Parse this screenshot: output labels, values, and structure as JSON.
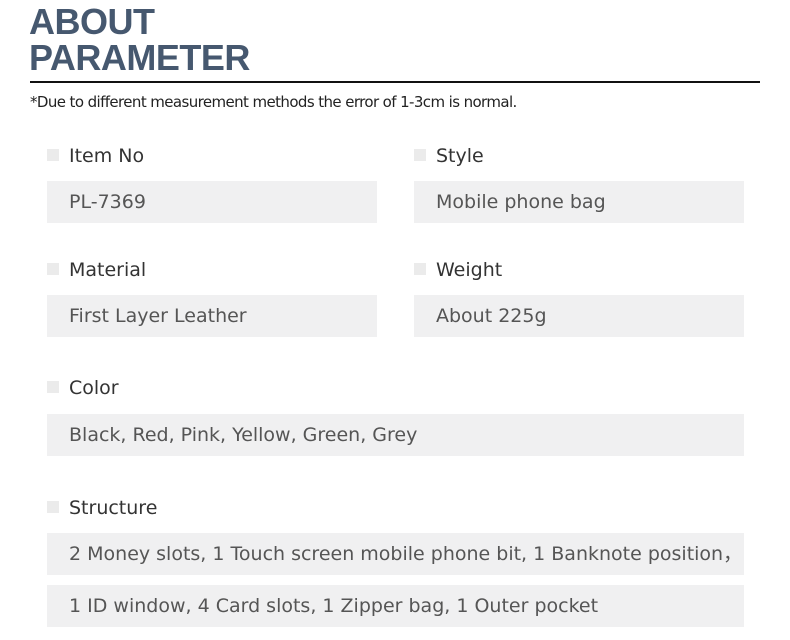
{
  "header": {
    "line1": "ABOUT",
    "line2": "PARAMETER",
    "note": "*Due to different measurement methods the error of 1-3cm is normal."
  },
  "params": {
    "item_no": {
      "label": "Item No",
      "value": "PL-7369"
    },
    "style": {
      "label": "Style",
      "value": "Mobile phone bag"
    },
    "material": {
      "label": "Material",
      "value": "First Layer Leather"
    },
    "weight": {
      "label": "Weight",
      "value": "About 225g"
    },
    "color": {
      "label": "Color",
      "value": "Black, Red, Pink, Yellow, Green, Grey"
    },
    "structure": {
      "label": "Structure",
      "values": [
        "2 Money slots, 1 Touch screen mobile phone bit, 1 Banknote position，",
        "1 ID window, 4 Card slots, 1 Zipper bag, 1 Outer pocket"
      ]
    }
  },
  "colors": {
    "title": "#46586f",
    "box": "#f0f0f1"
  }
}
